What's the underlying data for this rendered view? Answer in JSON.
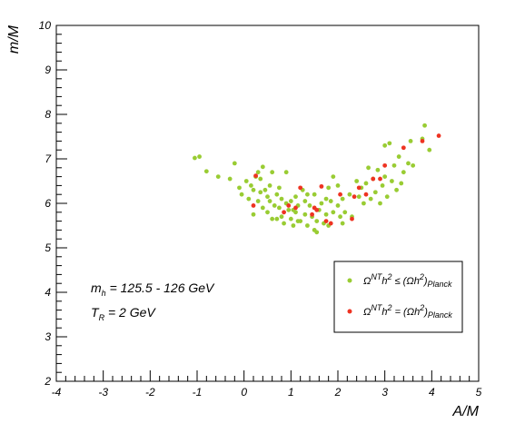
{
  "chart_data": {
    "type": "scatter",
    "title": "",
    "xlabel": "A/M",
    "ylabel": "m/M",
    "xlim": [
      -4,
      5
    ],
    "ylim": [
      2,
      10
    ],
    "grid": false,
    "legend_position": "lower-right",
    "x_ticks": [
      "-4",
      "-3",
      "-2",
      "-1",
      "0",
      "1",
      "2",
      "3",
      "4",
      "5"
    ],
    "y_ticks": [
      "2",
      "3",
      "4",
      "5",
      "6",
      "7",
      "8",
      "9",
      "10"
    ],
    "annotations": {
      "mh_main": "m",
      "mh_sub": "h",
      "mh_rest": " = 125.5 - 126 GeV",
      "tr_main": "T",
      "tr_sub": "R",
      "tr_rest": " = 2 GeV"
    },
    "series": [
      {
        "name": "Ω^{NT} h^2 ≤ (Ωh^2)_{Planck}",
        "legend": {
          "omega": "Ω",
          "nt": "NT",
          "h": "h",
          "two": "2",
          "rel": " ≤ (Ωh",
          "close": ")",
          "planck": "Planck"
        },
        "color": "#99cc33",
        "points": [
          [
            -1.05,
            7.02
          ],
          [
            -0.95,
            7.05
          ],
          [
            -0.8,
            6.72
          ],
          [
            -0.55,
            6.6
          ],
          [
            -0.3,
            6.55
          ],
          [
            -0.2,
            6.9
          ],
          [
            -0.1,
            6.35
          ],
          [
            -0.05,
            6.2
          ],
          [
            0.05,
            6.5
          ],
          [
            0.1,
            6.1
          ],
          [
            0.15,
            6.4
          ],
          [
            0.2,
            6.3
          ],
          [
            0.2,
            5.75
          ],
          [
            0.25,
            6.6
          ],
          [
            0.3,
            6.7
          ],
          [
            0.3,
            6.05
          ],
          [
            0.35,
            6.25
          ],
          [
            0.35,
            6.55
          ],
          [
            0.4,
            5.9
          ],
          [
            0.4,
            6.82
          ],
          [
            0.45,
            6.3
          ],
          [
            0.5,
            5.8
          ],
          [
            0.5,
            6.15
          ],
          [
            0.55,
            6.05
          ],
          [
            0.55,
            6.4
          ],
          [
            0.6,
            6.7
          ],
          [
            0.6,
            5.65
          ],
          [
            0.65,
            5.95
          ],
          [
            0.7,
            6.2
          ],
          [
            0.7,
            5.65
          ],
          [
            0.75,
            5.9
          ],
          [
            0.8,
            6.1
          ],
          [
            0.8,
            5.7
          ],
          [
            0.85,
            5.55
          ],
          [
            0.9,
            6.0
          ],
          [
            0.9,
            6.7
          ],
          [
            0.95,
            5.85
          ],
          [
            1.0,
            5.65
          ],
          [
            1.0,
            6.05
          ],
          [
            1.05,
            5.5
          ],
          [
            1.1,
            6.15
          ],
          [
            1.1,
            5.8
          ],
          [
            1.15,
            5.95
          ],
          [
            1.2,
            5.6
          ],
          [
            1.25,
            6.3
          ],
          [
            1.3,
            5.75
          ],
          [
            1.3,
            6.05
          ],
          [
            1.35,
            5.5
          ],
          [
            1.4,
            5.95
          ],
          [
            1.45,
            5.7
          ],
          [
            1.5,
            5.4
          ],
          [
            1.5,
            6.2
          ],
          [
            1.55,
            5.6
          ],
          [
            1.6,
            5.85
          ],
          [
            1.65,
            6.0
          ],
          [
            1.7,
            5.55
          ],
          [
            1.75,
            5.75
          ],
          [
            1.8,
            5.5
          ],
          [
            1.8,
            6.35
          ],
          [
            1.85,
            6.05
          ],
          [
            1.9,
            5.8
          ],
          [
            1.9,
            6.6
          ],
          [
            2.0,
            6.4
          ],
          [
            2.0,
            5.95
          ],
          [
            2.05,
            5.7
          ],
          [
            2.1,
            6.1
          ],
          [
            2.15,
            5.8
          ],
          [
            2.25,
            6.2
          ],
          [
            2.3,
            5.7
          ],
          [
            2.4,
            6.5
          ],
          [
            2.45,
            6.15
          ],
          [
            2.5,
            6.35
          ],
          [
            2.55,
            6.0
          ],
          [
            2.6,
            6.45
          ],
          [
            2.65,
            6.8
          ],
          [
            2.7,
            6.1
          ],
          [
            2.75,
            6.55
          ],
          [
            2.8,
            6.25
          ],
          [
            2.85,
            6.75
          ],
          [
            2.9,
            6.0
          ],
          [
            2.95,
            6.4
          ],
          [
            3.0,
            7.3
          ],
          [
            3.0,
            6.6
          ],
          [
            3.05,
            6.15
          ],
          [
            3.1,
            7.35
          ],
          [
            3.15,
            6.5
          ],
          [
            3.2,
            6.85
          ],
          [
            3.25,
            6.3
          ],
          [
            3.3,
            7.05
          ],
          [
            3.35,
            6.45
          ],
          [
            3.4,
            6.7
          ],
          [
            3.5,
            6.9
          ],
          [
            3.55,
            7.4
          ],
          [
            3.6,
            6.85
          ],
          [
            3.8,
            7.45
          ],
          [
            3.85,
            7.75
          ],
          [
            3.95,
            7.2
          ],
          [
            1.15,
            5.6
          ],
          [
            1.55,
            5.35
          ],
          [
            1.05,
            5.85
          ],
          [
            0.75,
            6.35
          ],
          [
            1.75,
            6.1
          ],
          [
            2.1,
            5.55
          ],
          [
            1.35,
            6.2
          ]
        ]
      },
      {
        "name": "Ω^{NT} h^2 = (Ωh^2)_{Planck}",
        "legend": {
          "omega": "Ω",
          "nt": "NT",
          "h": "h",
          "two": "2",
          "rel": " = (Ωh",
          "close": ")",
          "planck": "Planck"
        },
        "color": "#ee3322",
        "points": [
          [
            0.25,
            6.62
          ],
          [
            0.2,
            5.95
          ],
          [
            0.85,
            5.8
          ],
          [
            0.95,
            5.95
          ],
          [
            1.2,
            6.35
          ],
          [
            1.45,
            5.75
          ],
          [
            1.5,
            5.9
          ],
          [
            1.65,
            6.38
          ],
          [
            1.75,
            5.6
          ],
          [
            1.85,
            5.55
          ],
          [
            2.3,
            5.65
          ],
          [
            2.35,
            6.15
          ],
          [
            2.45,
            6.35
          ],
          [
            2.6,
            6.2
          ],
          [
            2.75,
            6.55
          ],
          [
            2.9,
            6.55
          ],
          [
            3.0,
            6.85
          ],
          [
            3.4,
            7.25
          ],
          [
            3.8,
            7.4
          ],
          [
            4.15,
            7.52
          ],
          [
            1.55,
            5.85
          ],
          [
            1.1,
            5.9
          ],
          [
            2.05,
            6.2
          ]
        ]
      }
    ]
  }
}
